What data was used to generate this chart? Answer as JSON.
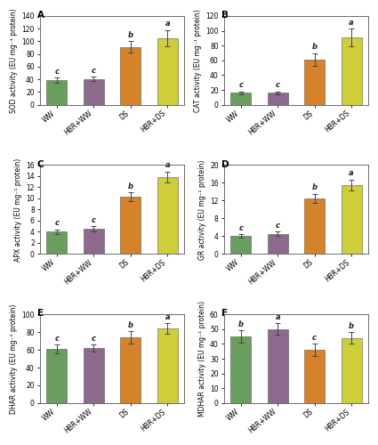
{
  "panels": [
    {
      "label": "A",
      "ylabel": "SOD activity (EU mg⁻¹ protein)",
      "ylim": [
        0,
        140
      ],
      "yticks": [
        0,
        20,
        40,
        60,
        80,
        100,
        120,
        140
      ],
      "values": [
        39,
        41,
        91,
        105
      ],
      "errors": [
        4,
        3,
        9,
        13
      ],
      "letters": [
        "c",
        "c",
        "b",
        "a"
      ]
    },
    {
      "label": "B",
      "ylabel": "CAT activity (EU mg⁻¹ protein)",
      "ylim": [
        0,
        120
      ],
      "yticks": [
        0,
        20,
        40,
        60,
        80,
        100,
        120
      ],
      "values": [
        16,
        16,
        61,
        91
      ],
      "errors": [
        2,
        2,
        9,
        12
      ],
      "letters": [
        "c",
        "c",
        "b",
        "a"
      ]
    },
    {
      "label": "C",
      "ylabel": "APX activity (EU mg⁻¹ protein)",
      "ylim": [
        0,
        16
      ],
      "yticks": [
        0,
        2,
        4,
        6,
        8,
        10,
        12,
        14,
        16
      ],
      "values": [
        4.0,
        4.5,
        10.3,
        13.8
      ],
      "errors": [
        0.4,
        0.5,
        0.8,
        1.0
      ],
      "letters": [
        "c",
        "c",
        "b",
        "a"
      ]
    },
    {
      "label": "D",
      "ylabel": "GR activity (EU mg⁻¹ protein)",
      "ylim": [
        0,
        20
      ],
      "yticks": [
        0,
        4,
        8,
        12,
        16,
        20
      ],
      "values": [
        4.0,
        4.5,
        12.5,
        15.5
      ],
      "errors": [
        0.4,
        0.5,
        1.0,
        1.2
      ],
      "letters": [
        "c",
        "c",
        "b",
        "a"
      ]
    },
    {
      "label": "E",
      "ylabel": "DHAR activity (EU mg⁻¹ protein)",
      "ylim": [
        0,
        100
      ],
      "yticks": [
        0,
        20,
        40,
        60,
        80,
        100
      ],
      "values": [
        61,
        62,
        74,
        84
      ],
      "errors": [
        5,
        4,
        7,
        6
      ],
      "letters": [
        "c",
        "c",
        "b",
        "a"
      ]
    },
    {
      "label": "F",
      "ylabel": "MDHAR activity (EU mg⁻¹ protein)",
      "ylim": [
        0,
        60
      ],
      "yticks": [
        0,
        10,
        20,
        30,
        40,
        50,
        60
      ],
      "values": [
        45,
        50,
        36,
        44
      ],
      "errors": [
        4,
        4,
        4,
        4
      ],
      "letters": [
        "b",
        "a",
        "c",
        "b"
      ]
    }
  ],
  "categories": [
    "WW",
    "HBR+WW",
    "DS",
    "HBR+DS"
  ],
  "bar_colors": [
    "#6a9e5f",
    "#8b6a8e",
    "#d4832a",
    "#cece3a"
  ],
  "bar_width": 0.55,
  "background_color": "#ffffff",
  "figure_size": [
    4.25,
    5.0
  ],
  "dpi": 100
}
